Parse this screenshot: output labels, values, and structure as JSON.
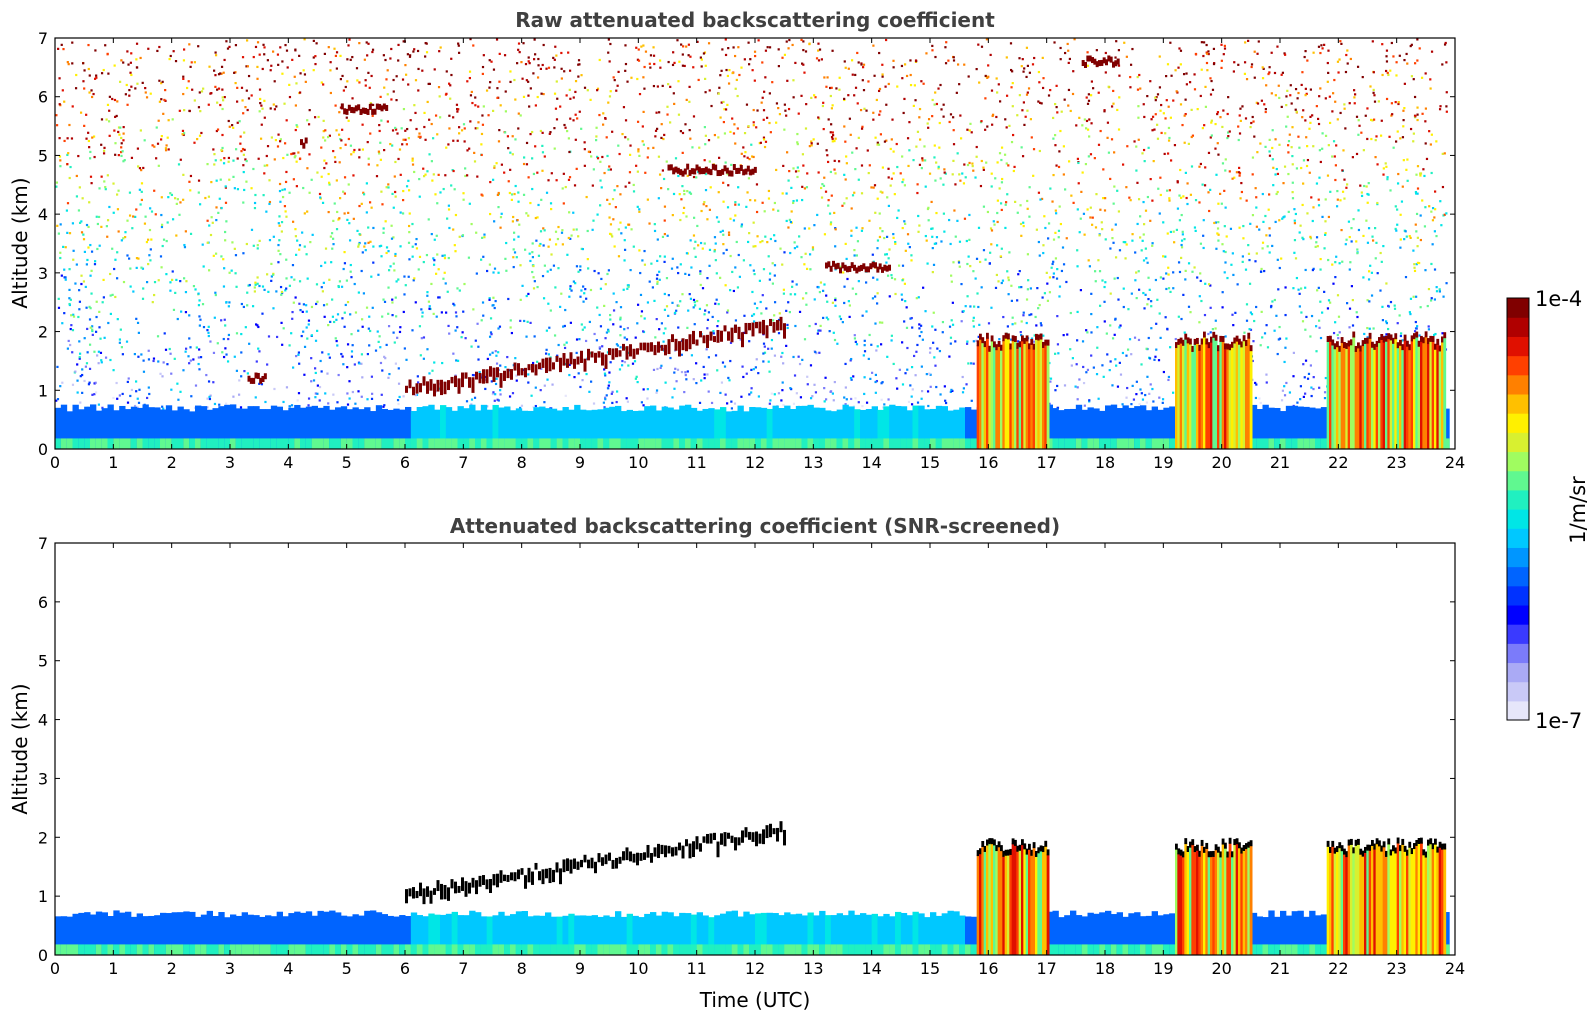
{
  "figure": {
    "colorbar": {
      "label": "1/m/sr",
      "top_label": "1e-4",
      "bottom_label": "1e-7",
      "colors": [
        "#e6e6fa",
        "#c9c9f7",
        "#aaaaf5",
        "#7b7bfa",
        "#3a3aff",
        "#0000ff",
        "#0032ff",
        "#0064ff",
        "#0096ff",
        "#00c8ff",
        "#00e6e6",
        "#20f0c0",
        "#60f890",
        "#a0fc60",
        "#d8f030",
        "#fff000",
        "#ffc000",
        "#ff8000",
        "#ff4000",
        "#e01000",
        "#b00000",
        "#800000"
      ]
    }
  },
  "chart_data": [
    {
      "type": "heatmap",
      "title": "Raw attenuated backscattering coefficient",
      "xlabel": "",
      "ylabel": "Altitude (km)",
      "xlim": [
        0,
        24
      ],
      "ylim": [
        0,
        7
      ],
      "x_ticks": [
        "0",
        "1",
        "2",
        "3",
        "4",
        "5",
        "6",
        "7",
        "8",
        "9",
        "10",
        "11",
        "12",
        "13",
        "14",
        "15",
        "16",
        "17",
        "18",
        "19",
        "20",
        "21",
        "22",
        "23",
        "24"
      ],
      "y_ticks": [
        "0",
        "1",
        "2",
        "3",
        "4",
        "5",
        "6",
        "7"
      ],
      "color_scale": "log",
      "value_range": [
        1e-07,
        0.0001
      ],
      "features": [
        {
          "kind": "boundary_layer",
          "x": [
            0,
            24
          ],
          "top_km": 0.7
        },
        {
          "kind": "aerosol_layer",
          "x": [
            6.0,
            12.5
          ],
          "y_start_km": 1.0,
          "y_end_km": 2.1
        },
        {
          "kind": "cloud",
          "x": [
            4.9,
            5.7
          ],
          "y_km": 5.8
        },
        {
          "kind": "cloud",
          "x": [
            4.2,
            4.3
          ],
          "y_km": 5.2
        },
        {
          "kind": "cloud",
          "x": [
            3.3,
            3.6
          ],
          "y_km": 1.2
        },
        {
          "kind": "cloud",
          "x": [
            10.5,
            12.0
          ],
          "y_km": 4.75
        },
        {
          "kind": "cloud",
          "x": [
            13.2,
            14.3
          ],
          "y_km": 3.1
        },
        {
          "kind": "cloud",
          "x": [
            17.6,
            18.2
          ],
          "y_km": 6.6
        },
        {
          "kind": "precipitating_cloud",
          "x": [
            15.8,
            17.0
          ],
          "top_km": 1.8
        },
        {
          "kind": "precipitating_cloud",
          "x": [
            19.2,
            20.5
          ],
          "top_km": 1.8
        },
        {
          "kind": "precipitating_cloud",
          "x": [
            21.8,
            23.8
          ],
          "top_km": 1.8
        }
      ]
    },
    {
      "type": "heatmap",
      "title": "Attenuated backscattering coefficient (SNR-screened)",
      "xlabel": "Time (UTC)",
      "ylabel": "Altitude (km)",
      "xlim": [
        0,
        24
      ],
      "ylim": [
        0,
        7
      ],
      "x_ticks": [
        "0",
        "1",
        "2",
        "3",
        "4",
        "5",
        "6",
        "7",
        "8",
        "9",
        "10",
        "11",
        "12",
        "13",
        "14",
        "15",
        "16",
        "17",
        "18",
        "19",
        "20",
        "21",
        "22",
        "23",
        "24"
      ],
      "y_ticks": [
        "0",
        "1",
        "2",
        "3",
        "4",
        "5",
        "6",
        "7"
      ],
      "color_scale": "log",
      "value_range": [
        1e-07,
        0.0001
      ],
      "features": [
        {
          "kind": "boundary_layer",
          "x": [
            0,
            24
          ],
          "top_km": 0.7
        },
        {
          "kind": "aerosol_layer",
          "x": [
            6.0,
            12.5
          ],
          "y_start_km": 1.0,
          "y_end_km": 2.1
        },
        {
          "kind": "precipitating_cloud",
          "x": [
            15.8,
            17.0
          ],
          "top_km": 1.8
        },
        {
          "kind": "precipitating_cloud",
          "x": [
            19.2,
            20.5
          ],
          "top_km": 1.8
        },
        {
          "kind": "precipitating_cloud",
          "x": [
            21.8,
            23.8
          ],
          "top_km": 1.8
        }
      ]
    }
  ]
}
